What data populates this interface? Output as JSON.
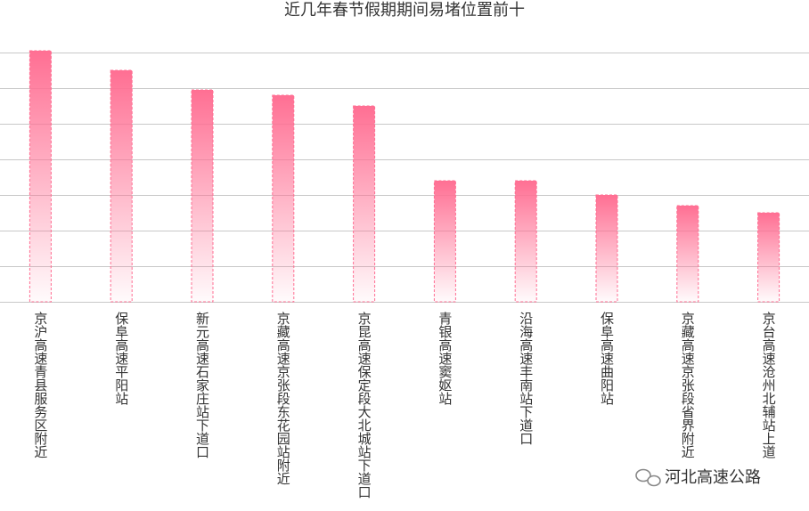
{
  "chart_data": {
    "type": "bar",
    "title": "近几年春节假期期间易堵位置前十",
    "categories": [
      "京沪高速青县服务区附近",
      "保阜高速平阳站",
      "新元高速石家庄站下道口",
      "京藏高速京张段东花园站附近",
      "京昆高速保定段大北城站下道口",
      "青银高速窦妪站",
      "沿海高速丰南站下道口",
      "保阜高速曲阳站",
      "京藏高速京张段省界附近",
      "京台高速沧州北辅站上道"
    ],
    "values": [
      7.05,
      6.5,
      5.95,
      5.8,
      5.5,
      3.4,
      3.4,
      3.0,
      2.7,
      2.5
    ],
    "color": "#ff6f93",
    "ylim": [
      0,
      7
    ],
    "yticks": [
      0,
      1,
      2,
      3,
      4,
      5,
      6,
      7
    ],
    "grid": true,
    "watermark": "河北高速公路"
  }
}
